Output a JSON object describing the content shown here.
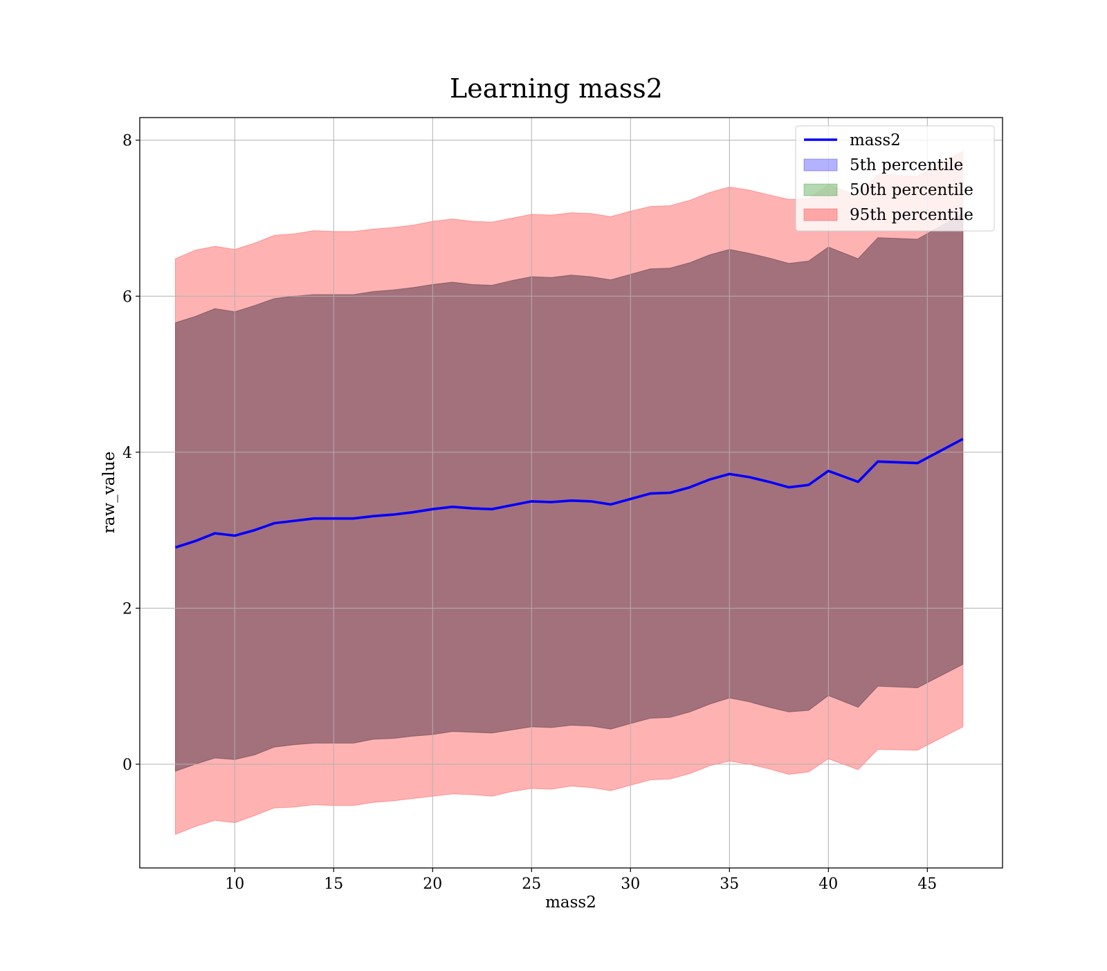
{
  "chart_data": {
    "type": "line",
    "title": "Learning mass2",
    "xlabel": "mass2",
    "ylabel": "raw_value",
    "xlim": [
      5.2,
      48.8
    ],
    "ylim": [
      -1.33,
      8.29
    ],
    "xticks": [
      10,
      15,
      20,
      25,
      30,
      35,
      40,
      45
    ],
    "yticks": [
      0,
      2,
      4,
      6,
      8
    ],
    "grid": true,
    "legend_position": "top-right",
    "colors": {
      "line": "#0000ff",
      "band_5": "#0000ff",
      "band_50": "#008000",
      "band_95": "#ff0000"
    },
    "x": [
      7.0,
      8.0,
      9.0,
      10.0,
      11.0,
      12.0,
      13.0,
      14.0,
      15.0,
      16.0,
      17.0,
      18.0,
      19.0,
      20.0,
      21.0,
      22.0,
      23.0,
      24.0,
      25.0,
      26.0,
      27.0,
      28.0,
      29.0,
      30.0,
      31.0,
      32.0,
      33.0,
      34.0,
      35.0,
      36.0,
      37.0,
      38.0,
      39.0,
      40.0,
      41.5,
      42.5,
      44.5,
      46.8
    ],
    "series": [
      {
        "name": "mass2",
        "kind": "line",
        "values": [
          2.78,
          2.86,
          2.96,
          2.93,
          3.0,
          3.09,
          3.12,
          3.15,
          3.15,
          3.15,
          3.18,
          3.2,
          3.23,
          3.27,
          3.3,
          3.28,
          3.27,
          3.32,
          3.37,
          3.36,
          3.38,
          3.37,
          3.33,
          3.4,
          3.47,
          3.48,
          3.55,
          3.65,
          3.72,
          3.68,
          3.62,
          3.55,
          3.58,
          3.76,
          3.62,
          3.88,
          3.86,
          4.17
        ]
      },
      {
        "name": "5th percentile",
        "kind": "band",
        "lower": [
          -0.09,
          0.0,
          0.08,
          0.06,
          0.12,
          0.22,
          0.25,
          0.27,
          0.27,
          0.27,
          0.32,
          0.33,
          0.36,
          0.38,
          0.42,
          0.41,
          0.4,
          0.44,
          0.48,
          0.47,
          0.5,
          0.49,
          0.45,
          0.52,
          0.59,
          0.6,
          0.67,
          0.77,
          0.85,
          0.8,
          0.73,
          0.67,
          0.69,
          0.88,
          0.73,
          1.0,
          0.98,
          1.28
        ],
        "upper": [
          5.66,
          5.74,
          5.84,
          5.8,
          5.88,
          5.97,
          6.0,
          6.02,
          6.02,
          6.02,
          6.06,
          6.08,
          6.11,
          6.15,
          6.18,
          6.15,
          6.14,
          6.2,
          6.25,
          6.24,
          6.27,
          6.25,
          6.21,
          6.28,
          6.35,
          6.36,
          6.43,
          6.53,
          6.6,
          6.55,
          6.49,
          6.42,
          6.45,
          6.63,
          6.48,
          6.75,
          6.73,
          7.06
        ]
      },
      {
        "name": "50th percentile",
        "kind": "band",
        "lower": [
          -0.09,
          0.0,
          0.08,
          0.06,
          0.12,
          0.22,
          0.25,
          0.27,
          0.27,
          0.27,
          0.32,
          0.33,
          0.36,
          0.38,
          0.42,
          0.41,
          0.4,
          0.44,
          0.48,
          0.47,
          0.5,
          0.49,
          0.45,
          0.52,
          0.59,
          0.6,
          0.67,
          0.77,
          0.85,
          0.8,
          0.73,
          0.67,
          0.69,
          0.88,
          0.73,
          1.0,
          0.98,
          1.28
        ],
        "upper": [
          5.66,
          5.74,
          5.84,
          5.8,
          5.88,
          5.97,
          6.0,
          6.02,
          6.02,
          6.02,
          6.06,
          6.08,
          6.11,
          6.15,
          6.18,
          6.15,
          6.14,
          6.2,
          6.25,
          6.24,
          6.27,
          6.25,
          6.21,
          6.28,
          6.35,
          6.36,
          6.43,
          6.53,
          6.6,
          6.55,
          6.49,
          6.42,
          6.45,
          6.63,
          6.48,
          6.75,
          6.73,
          7.06
        ]
      },
      {
        "name": "95th percentile",
        "kind": "band",
        "lower": [
          -0.9,
          -0.8,
          -0.72,
          -0.75,
          -0.66,
          -0.56,
          -0.55,
          -0.52,
          -0.53,
          -0.53,
          -0.49,
          -0.47,
          -0.44,
          -0.41,
          -0.38,
          -0.39,
          -0.41,
          -0.35,
          -0.31,
          -0.32,
          -0.28,
          -0.3,
          -0.34,
          -0.27,
          -0.2,
          -0.19,
          -0.12,
          -0.02,
          0.04,
          0.0,
          -0.06,
          -0.13,
          -0.1,
          0.07,
          -0.07,
          0.19,
          0.18,
          0.48
        ],
        "upper": [
          6.48,
          6.59,
          6.64,
          6.6,
          6.68,
          6.78,
          6.8,
          6.84,
          6.83,
          6.83,
          6.86,
          6.88,
          6.91,
          6.96,
          6.99,
          6.96,
          6.95,
          7.0,
          7.05,
          7.04,
          7.07,
          7.06,
          7.02,
          7.09,
          7.15,
          7.16,
          7.23,
          7.33,
          7.4,
          7.36,
          7.3,
          7.24,
          7.25,
          7.43,
          7.29,
          7.56,
          7.54,
          7.86
        ]
      }
    ],
    "band_offsets": {
      "5th percentile": 0.0,
      "50th percentile": 0.4,
      "95th percentile": 0.82
    }
  }
}
